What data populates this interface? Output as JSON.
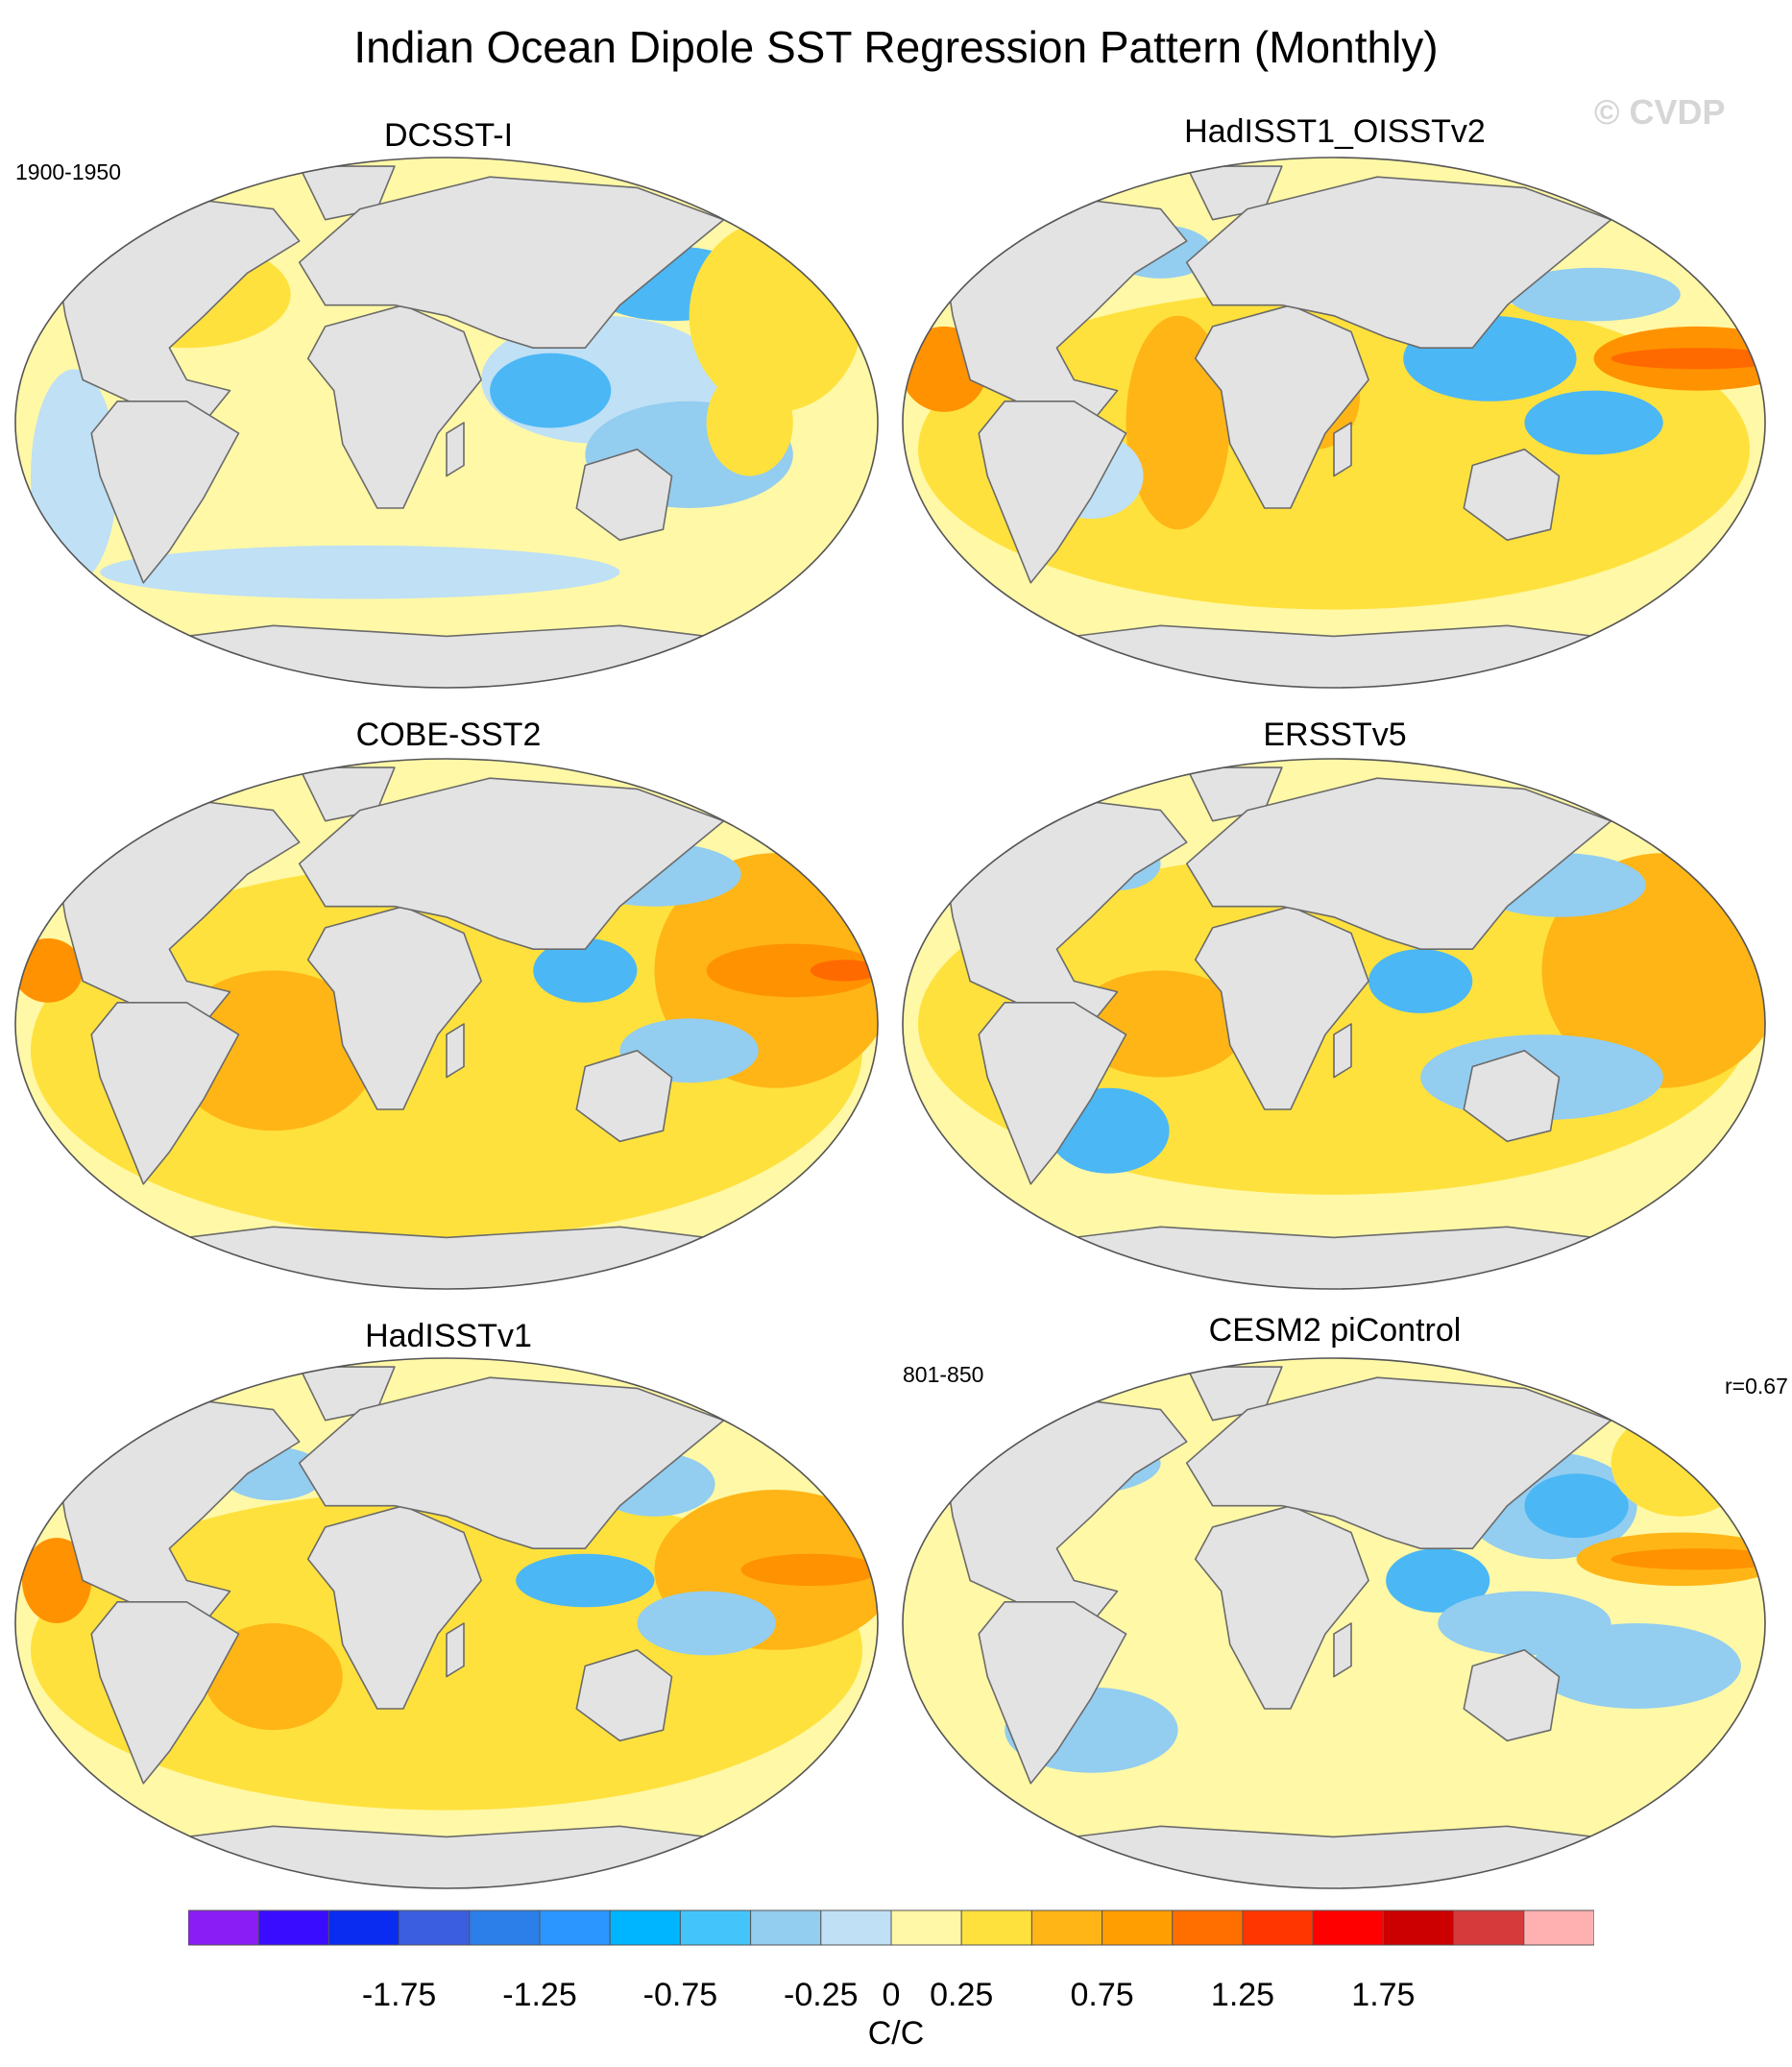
{
  "title": "Indian Ocean Dipole SST Regression Pattern (Monthly)",
  "watermark": "© CVDP",
  "colors": {
    "land": "#e3e3e3",
    "coast": "#6b6b6b",
    "neg_strong": "#2f8fff",
    "neg_mid": "#4bb7f5",
    "neg_light": "#93cdf0",
    "neg_faint": "#bfe0f5",
    "pos_faint": "#fff8a6",
    "pos_light": "#ffe13d",
    "pos_mid": "#ffb516",
    "pos_strong": "#ff9200",
    "pos_hot": "#ff6a00"
  },
  "chart_data": {
    "type": "heatmap",
    "projection": "Robinson global maps (2 columns × 3 rows)",
    "panels": [
      {
        "name": "DCSST-I",
        "left_label": "1900-1950",
        "right_label": ""
      },
      {
        "name": "HadISST1_OISSTv2",
        "left_label": "",
        "right_label": ""
      },
      {
        "name": "COBE-SST2",
        "left_label": "",
        "right_label": ""
      },
      {
        "name": "ERSSTv5",
        "left_label": "",
        "right_label": ""
      },
      {
        "name": "HadISSTv1",
        "left_label": "",
        "right_label": ""
      },
      {
        "name": "CESM2 piControl",
        "left_label": "801-850",
        "right_label": "r=0.67"
      }
    ],
    "colorbar": {
      "colors": [
        "#8a1cf5",
        "#3a0cff",
        "#0a2cf0",
        "#3b5ee0",
        "#2c7ee8",
        "#2b96ff",
        "#00b5ff",
        "#43c5fb",
        "#93cdf0",
        "#bfe0f5",
        "#fff8a6",
        "#ffe13d",
        "#ffb516",
        "#ff9e00",
        "#ff6f00",
        "#ff3600",
        "#ff0000",
        "#cc0000",
        "#d73a3a",
        "#ffb1b1"
      ],
      "tick_labels": [
        "-1.75",
        "-1.25",
        "-0.75",
        "-0.25",
        "0",
        "0.25",
        "0.75",
        "1.25",
        "1.75"
      ],
      "tick_values": [
        -1.75,
        -1.25,
        -0.75,
        -0.25,
        0,
        0.25,
        0.75,
        1.25,
        1.75
      ],
      "unit": "C/C"
    }
  }
}
